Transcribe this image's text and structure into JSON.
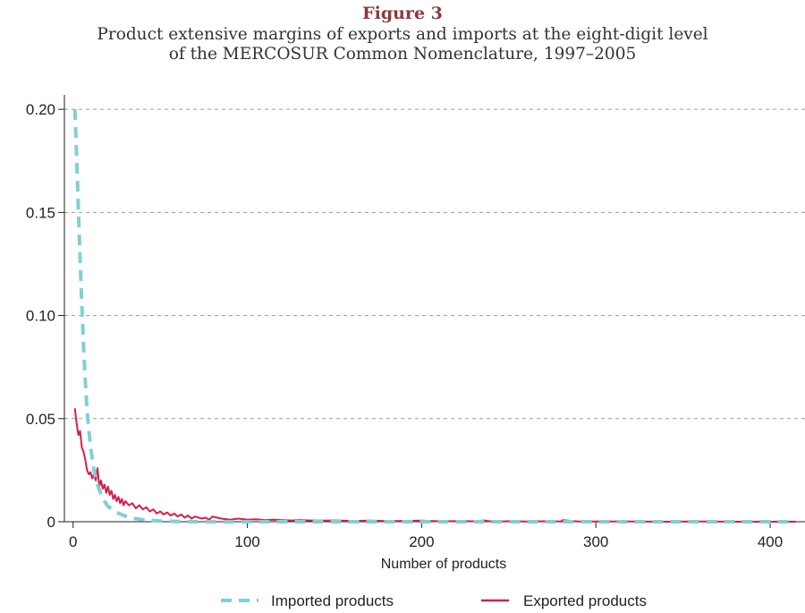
{
  "figure": {
    "label": "Figure 3",
    "subtitle_line1": "Product extensive margins of exports and imports at the eight-digit level",
    "subtitle_line2": "of the MERCOSUR Common Nomenclature, 1997–2005"
  },
  "colors": {
    "imported": "#7fd0d6",
    "exported": "#d81e4a",
    "grid": "#9a9a9a",
    "axis": "#222222",
    "title": "#8b3a3a"
  },
  "chart_data": {
    "type": "line",
    "title": "Product extensive margins of exports and imports at the eight-digit level of the MERCOSUR Common Nomenclature, 1997–2005",
    "xlabel": "Number of products",
    "ylabel": "",
    "xlim": [
      -5,
      420
    ],
    "ylim": [
      0,
      0.207
    ],
    "xticks": [
      0,
      100,
      200,
      300,
      400
    ],
    "xtick_labels": [
      "0",
      "100",
      "200",
      "300",
      "400"
    ],
    "yticks": [
      0,
      0.05,
      0.1,
      0.15,
      0.2
    ],
    "ytick_labels": [
      "0",
      "0.05",
      "0.10",
      "0.15",
      "0.20"
    ],
    "grid": "horizontal dashed",
    "legend_position": "bottom",
    "series": [
      {
        "name": "Imported products",
        "style": "dashed",
        "x": [
          1,
          2,
          3,
          4,
          5,
          6,
          7,
          8,
          10,
          12,
          14,
          16,
          18,
          20,
          25,
          30,
          35,
          40,
          45,
          50,
          55,
          60,
          70,
          80,
          100,
          150,
          200,
          250,
          300,
          350,
          415
        ],
        "y": [
          0.2,
          0.178,
          0.152,
          0.128,
          0.105,
          0.085,
          0.068,
          0.054,
          0.036,
          0.025,
          0.018,
          0.0135,
          0.01,
          0.0075,
          0.0045,
          0.0027,
          0.0016,
          0.001,
          0.0006,
          0.0003,
          0.0002,
          0.0001,
          0.0,
          0.0,
          0.0,
          0.0,
          0.0,
          0.0,
          0.0,
          0.0,
          0.0
        ]
      },
      {
        "name": "Exported products",
        "style": "solid",
        "x": [
          1,
          2,
          3,
          4,
          5,
          6,
          7,
          8,
          9,
          10,
          11,
          12,
          13,
          14,
          15,
          16,
          17,
          18,
          19,
          20,
          21,
          22,
          23,
          24,
          25,
          26,
          27,
          28,
          29,
          30,
          32,
          34,
          36,
          38,
          40,
          42,
          44,
          46,
          48,
          50,
          52,
          54,
          56,
          58,
          60,
          62,
          64,
          66,
          68,
          70,
          72,
          74,
          76,
          78,
          80,
          85,
          90,
          95,
          100,
          105,
          110,
          115,
          120,
          125,
          130,
          140,
          150,
          160,
          170,
          180,
          190,
          200,
          210,
          220,
          230,
          236,
          240,
          250,
          260,
          270,
          280,
          281,
          290,
          300,
          320,
          340,
          360,
          380,
          400,
          415
        ],
        "y": [
          0.055,
          0.048,
          0.042,
          0.044,
          0.036,
          0.034,
          0.03,
          0.025,
          0.023,
          0.024,
          0.021,
          0.023,
          0.02,
          0.026,
          0.017,
          0.02,
          0.016,
          0.018,
          0.014,
          0.017,
          0.013,
          0.015,
          0.011,
          0.013,
          0.01,
          0.012,
          0.009,
          0.011,
          0.008,
          0.01,
          0.008,
          0.009,
          0.0065,
          0.008,
          0.006,
          0.007,
          0.005,
          0.006,
          0.004,
          0.005,
          0.0035,
          0.0045,
          0.003,
          0.004,
          0.0025,
          0.0035,
          0.002,
          0.003,
          0.0015,
          0.0025,
          0.002,
          0.0015,
          0.002,
          0.001,
          0.0025,
          0.0015,
          0.001,
          0.0015,
          0.001,
          0.0012,
          0.0008,
          0.001,
          0.0008,
          0.0006,
          0.0008,
          0.0005,
          0.0006,
          0.0004,
          0.0005,
          0.0003,
          0.0004,
          0.0005,
          0.0002,
          0.0003,
          0.0002,
          0.0006,
          0.0001,
          0.0002,
          0.0001,
          0.0002,
          0.0001,
          0.0008,
          0.0001,
          0.0001,
          0.0001,
          0.0,
          0.0001,
          0.0,
          0.0,
          0.0
        ]
      }
    ]
  }
}
